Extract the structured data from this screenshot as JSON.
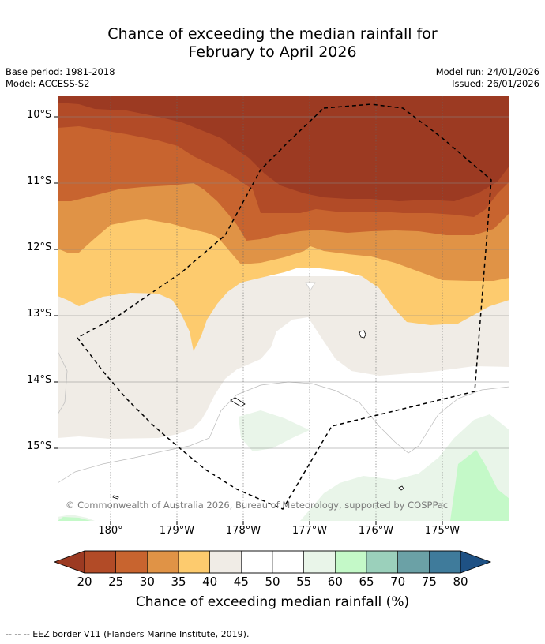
{
  "title": {
    "line1": "Chance of exceeding the median rainfall for",
    "line2": "February to April 2026"
  },
  "meta": {
    "base_period": "Base period: 1981-2018",
    "model": "Model: ACCESS-S2",
    "model_run": "Model run: 24/01/2026",
    "issued": "Issued: 26/01/2026"
  },
  "map": {
    "lat_labels": [
      "10°S",
      "11°S",
      "12°S",
      "13°S",
      "14°S",
      "15°S"
    ],
    "lon_labels": [
      "180°",
      "179°W",
      "178°W",
      "177°W",
      "176°W",
      "175°W"
    ],
    "copyright": "© Commonwealth of Australia 2026, Bureau of Meteorology, supported by COSPPac"
  },
  "colorbar": {
    "tick_labels": [
      "20",
      "25",
      "30",
      "35",
      "40",
      "45",
      "50",
      "55",
      "60",
      "65",
      "70",
      "75",
      "80"
    ],
    "colors": {
      "under": "#9c3a22",
      "bins": [
        "#b24b27",
        "#c8642f",
        "#e09346",
        "#fdcb6e",
        "#f0ece6",
        "#ffffff",
        "#ffffff",
        "#e9f5e9",
        "#c4f9c8",
        "#9bd0bb",
        "#6ba1a6",
        "#3f7b9b"
      ],
      "over": "#1e5184"
    },
    "title": "Chance of exceeding median rainfall (%)"
  },
  "footer": "--  --  -- EEZ border V11 (Flanders Marine Institute, 2019)."
}
